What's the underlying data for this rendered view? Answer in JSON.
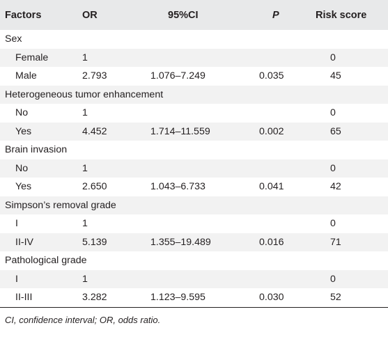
{
  "table": {
    "headers": {
      "factors": "Factors",
      "or": "OR",
      "ci": "95%CI",
      "p": "P",
      "risk": "Risk score"
    },
    "rows": [
      {
        "type": "group",
        "label": "Sex"
      },
      {
        "type": "level",
        "label": "Female",
        "or": "1",
        "ci": "",
        "p": "",
        "risk": "0"
      },
      {
        "type": "level",
        "label": "Male",
        "or": "2.793",
        "ci": "1.076–7.249",
        "p": "0.035",
        "risk": "45"
      },
      {
        "type": "group",
        "label": "Heterogeneous tumor enhancement"
      },
      {
        "type": "level",
        "label": "No",
        "or": "1",
        "ci": "",
        "p": "",
        "risk": "0"
      },
      {
        "type": "level",
        "label": "Yes",
        "or": "4.452",
        "ci": "1.714–11.559",
        "p": "0.002",
        "risk": "65"
      },
      {
        "type": "group",
        "label": "Brain invasion"
      },
      {
        "type": "level",
        "label": "No",
        "or": "1",
        "ci": "",
        "p": "",
        "risk": "0"
      },
      {
        "type": "level",
        "label": "Yes",
        "or": "2.650",
        "ci": "1.043–6.733",
        "p": "0.041",
        "risk": "42"
      },
      {
        "type": "group",
        "label": "Simpson’s removal grade"
      },
      {
        "type": "level",
        "label": "I",
        "or": "1",
        "ci": "",
        "p": "",
        "risk": "0"
      },
      {
        "type": "level",
        "label": "II-IV",
        "or": "5.139",
        "ci": "1.355–19.489",
        "p": "0.016",
        "risk": "71"
      },
      {
        "type": "group",
        "label": "Pathological grade"
      },
      {
        "type": "level",
        "label": "I",
        "or": "1",
        "ci": "",
        "p": "",
        "risk": "0"
      },
      {
        "type": "level",
        "label": "II-III",
        "or": "3.282",
        "ci": "1.123–9.595",
        "p": "0.030",
        "risk": "52"
      }
    ]
  },
  "footnote": "CI, confidence interval; OR, odds ratio."
}
